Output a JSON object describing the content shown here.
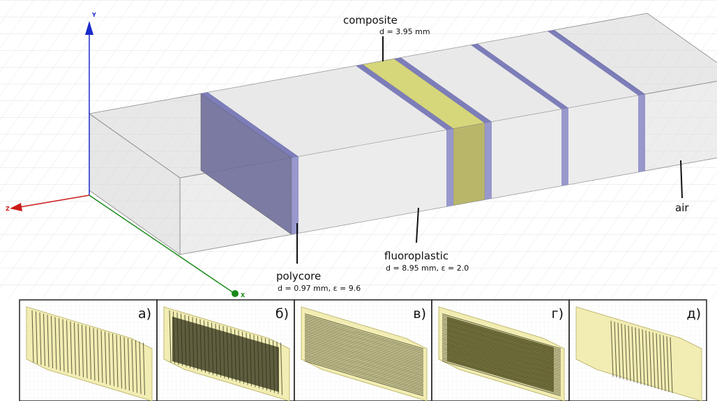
{
  "axes": {
    "y": "Y",
    "z": "Z",
    "x": "X"
  },
  "callouts": {
    "composite": {
      "label": "composite",
      "detail": "d = 3.95 mm"
    },
    "fluoroplastic": {
      "label": "fluoroplastic",
      "detail": "d = 8.95 mm, ε = 2.0"
    },
    "polycore": {
      "label": "polycore",
      "detail": "d = 0.97 mm, ε = 9.6"
    },
    "air": {
      "label": "air"
    }
  },
  "panels": [
    "а)",
    "б)",
    "в)",
    "г)",
    "д)"
  ]
}
